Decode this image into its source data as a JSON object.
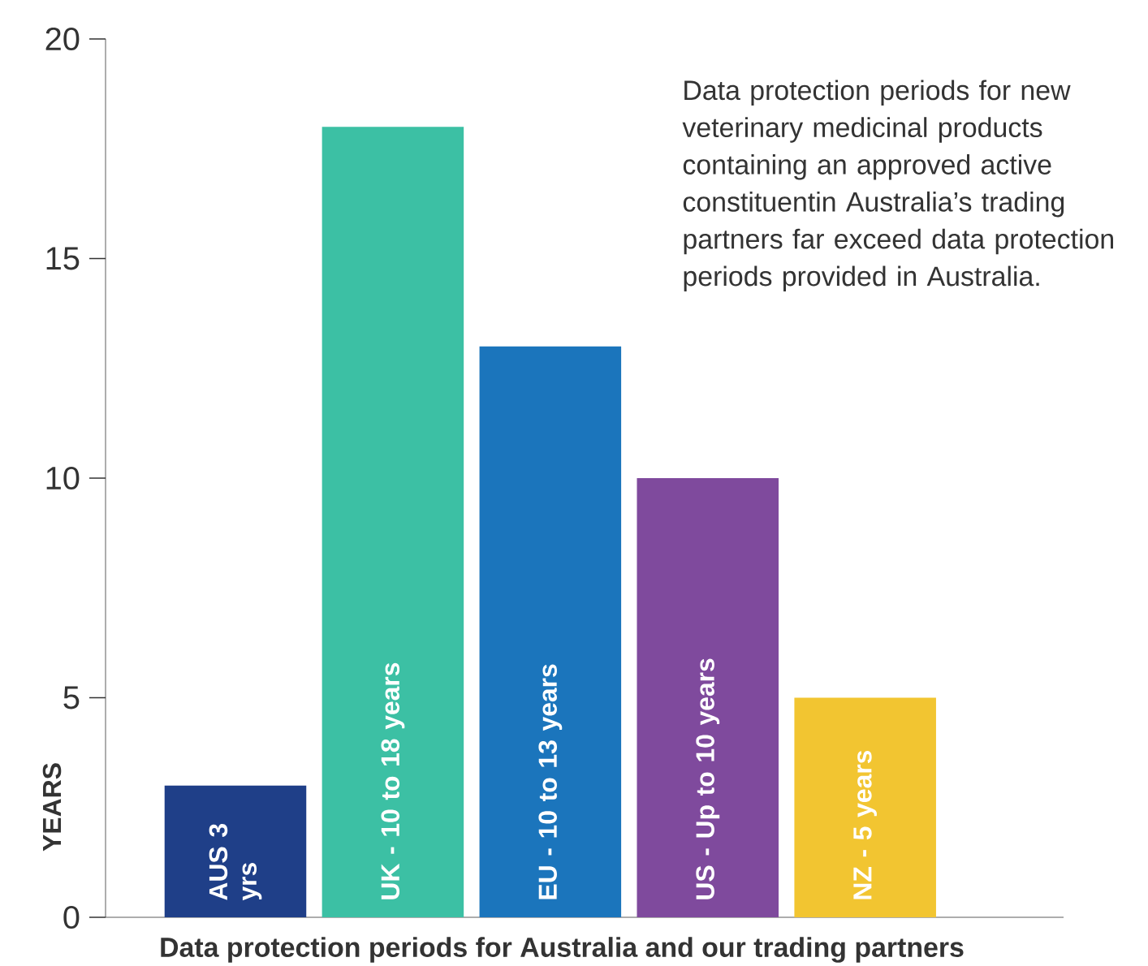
{
  "chart_data": {
    "type": "bar",
    "categories": [
      "AUS 3 yrs",
      "UK - 10 to 18 years",
      "EU - 10 to 13 years",
      "US - Up to 10 years",
      "NZ - 5 years"
    ],
    "values": [
      3,
      18,
      13,
      10,
      5
    ],
    "colors": [
      "#1f3f88",
      "#3cc0a4",
      "#1b75bc",
      "#7f4a9d",
      "#f2c531"
    ],
    "ylim": [
      0,
      20
    ],
    "yticks": [
      0,
      5,
      10,
      15,
      20
    ],
    "ylabel": "YEARS",
    "xlabel": "Data protection periods for Australia and our trading partners",
    "annotations": [
      "Data protection periods for new veterinary medicinal products containing an approved active constituentin Australia’s trading partners far exceed data protection periods provided in Australia."
    ]
  }
}
